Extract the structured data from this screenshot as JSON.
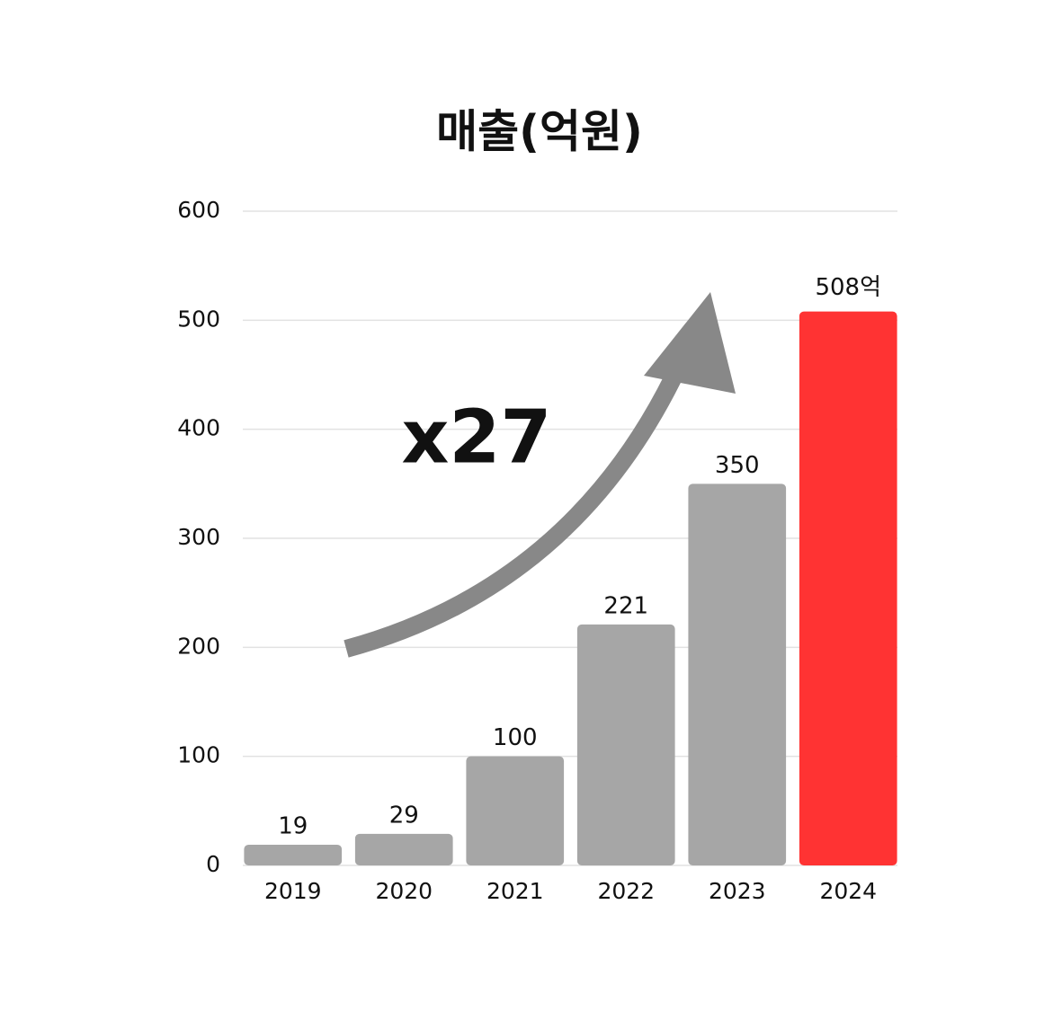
{
  "chart_data": {
    "type": "bar",
    "title": "매출(억원)",
    "categories": [
      "2019",
      "2020",
      "2021",
      "2022",
      "2023",
      "2024"
    ],
    "values": [
      19,
      29,
      100,
      221,
      350,
      508
    ],
    "value_labels": [
      "19",
      "29",
      "100",
      "221",
      "350",
      "508억"
    ],
    "colors": [
      "#a6a6a6",
      "#a6a6a6",
      "#a6a6a6",
      "#a6a6a6",
      "#a6a6a6",
      "#ff3333"
    ],
    "ylim": [
      0,
      600
    ],
    "yticks": [
      0,
      100,
      200,
      300,
      400,
      500,
      600
    ],
    "grid": true,
    "annotation": "x27",
    "annotation_color": "#ee1111"
  }
}
